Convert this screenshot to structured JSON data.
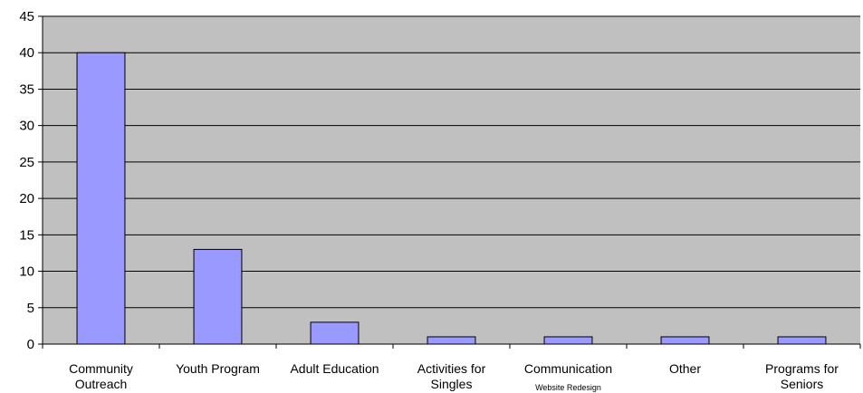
{
  "colors": {
    "plot_background": "#c0c0c0",
    "bar_fill": "#9999ff",
    "bar_stroke": "#000000",
    "gridline": "#000000",
    "axis": "#000000"
  },
  "chart_data": {
    "type": "bar",
    "title": "",
    "xlabel": "",
    "ylabel": "",
    "ylim": [
      0,
      45
    ],
    "yticks": [
      0,
      5,
      10,
      15,
      20,
      25,
      30,
      35,
      40,
      45
    ],
    "grid": true,
    "legend": "none",
    "categories": [
      {
        "lines": [
          "Community",
          "Outreach"
        ],
        "value": 40
      },
      {
        "lines": [
          "Youth Program"
        ],
        "value": 13
      },
      {
        "lines": [
          "Adult Education"
        ],
        "value": 3
      },
      {
        "lines": [
          "Activities for",
          "Singles"
        ],
        "value": 1
      },
      {
        "lines": [
          "Communication"
        ],
        "sublabel": "Website Redesign",
        "value": 1
      },
      {
        "lines": [
          "Other"
        ],
        "value": 1
      },
      {
        "lines": [
          "Programs for",
          "Seniors"
        ],
        "value": 1
      }
    ]
  }
}
